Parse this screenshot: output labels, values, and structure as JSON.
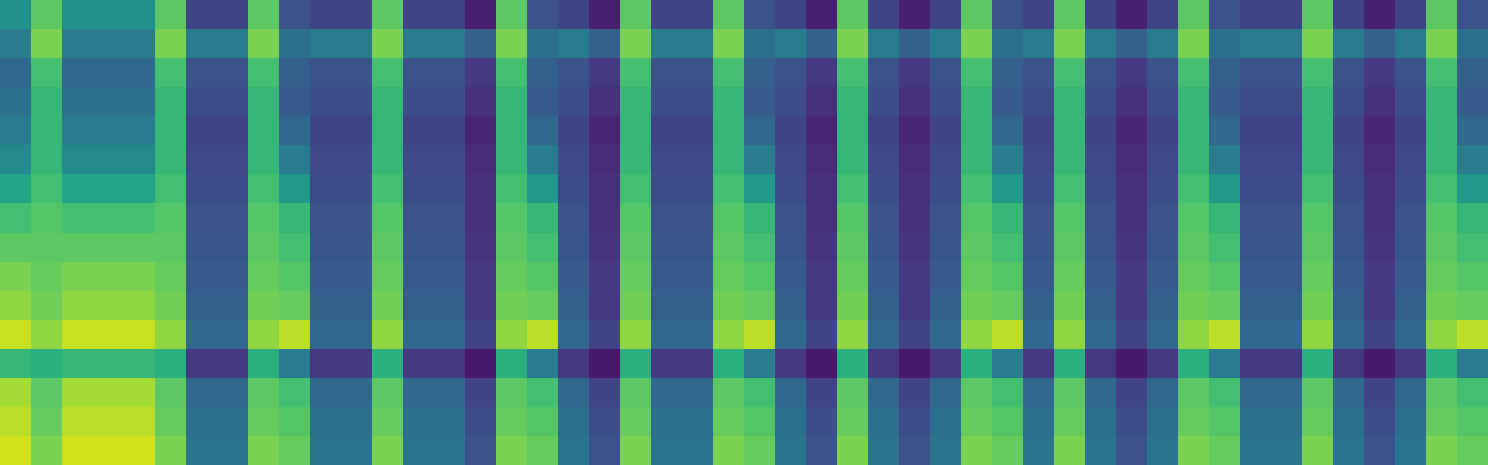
{
  "chart_data": {
    "type": "heatmap",
    "color": "Viridis",
    "tick_labels": false,
    "zlim": [
      30,
      90
    ],
    "z": [
      [
        60,
        75,
        60,
        60,
        60,
        75,
        42,
        42,
        75,
        45,
        42,
        42,
        75,
        42,
        42,
        35,
        75,
        45,
        42,
        35,
        75,
        42,
        42,
        75,
        45,
        42,
        35,
        75,
        42,
        35,
        42,
        75,
        45,
        42,
        75,
        42,
        35,
        42,
        75,
        45,
        42,
        42,
        75,
        42,
        35,
        42,
        75,
        45
      ],
      [
        55,
        78,
        55,
        55,
        55,
        78,
        55,
        55,
        78,
        52,
        55,
        55,
        78,
        55,
        55,
        48,
        78,
        52,
        55,
        48,
        78,
        55,
        55,
        78,
        52,
        55,
        48,
        78,
        55,
        48,
        55,
        78,
        52,
        55,
        78,
        55,
        48,
        55,
        78,
        52,
        55,
        55,
        78,
        55,
        48,
        55,
        78,
        52
      ],
      [
        50,
        72,
        50,
        50,
        50,
        72,
        45,
        45,
        72,
        48,
        45,
        45,
        72,
        45,
        45,
        40,
        72,
        48,
        45,
        40,
        72,
        45,
        45,
        72,
        48,
        45,
        40,
        72,
        45,
        40,
        45,
        72,
        48,
        45,
        72,
        45,
        40,
        45,
        72,
        48,
        45,
        45,
        72,
        45,
        40,
        45,
        72,
        48
      ],
      [
        52,
        70,
        52,
        52,
        52,
        70,
        44,
        44,
        70,
        47,
        44,
        44,
        70,
        44,
        44,
        38,
        70,
        47,
        44,
        38,
        70,
        44,
        44,
        70,
        47,
        44,
        38,
        70,
        44,
        38,
        44,
        70,
        47,
        44,
        70,
        44,
        38,
        44,
        70,
        47,
        44,
        44,
        70,
        44,
        38,
        44,
        70,
        47
      ],
      [
        55,
        70,
        55,
        55,
        55,
        70,
        42,
        42,
        70,
        50,
        42,
        42,
        70,
        42,
        42,
        36,
        70,
        50,
        42,
        36,
        70,
        42,
        42,
        70,
        50,
        42,
        36,
        70,
        42,
        36,
        42,
        70,
        50,
        42,
        70,
        42,
        36,
        42,
        70,
        50,
        42,
        42,
        70,
        42,
        36,
        42,
        70,
        50
      ],
      [
        58,
        70,
        58,
        58,
        58,
        70,
        43,
        43,
        70,
        55,
        43,
        43,
        70,
        43,
        43,
        37,
        70,
        55,
        43,
        37,
        70,
        43,
        43,
        70,
        55,
        43,
        37,
        70,
        43,
        37,
        43,
        70,
        55,
        43,
        70,
        43,
        37,
        43,
        70,
        55,
        43,
        43,
        70,
        43,
        37,
        43,
        70,
        55
      ],
      [
        65,
        72,
        65,
        65,
        65,
        72,
        44,
        44,
        72,
        62,
        44,
        44,
        72,
        44,
        44,
        38,
        72,
        62,
        44,
        38,
        72,
        44,
        44,
        72,
        62,
        44,
        38,
        72,
        44,
        38,
        44,
        72,
        62,
        44,
        72,
        44,
        38,
        44,
        72,
        62,
        44,
        44,
        72,
        44,
        38,
        44,
        72,
        62
      ],
      [
        72,
        74,
        72,
        72,
        72,
        74,
        45,
        45,
        74,
        70,
        45,
        45,
        74,
        45,
        45,
        38,
        74,
        70,
        45,
        38,
        74,
        45,
        45,
        74,
        70,
        45,
        38,
        74,
        45,
        38,
        45,
        74,
        70,
        45,
        74,
        45,
        38,
        45,
        74,
        70,
        45,
        45,
        74,
        45,
        38,
        45,
        74,
        70
      ],
      [
        75,
        75,
        75,
        75,
        75,
        75,
        46,
        46,
        75,
        72,
        46,
        46,
        75,
        46,
        46,
        39,
        75,
        72,
        46,
        39,
        75,
        46,
        46,
        75,
        72,
        46,
        39,
        75,
        46,
        39,
        46,
        75,
        72,
        46,
        75,
        46,
        39,
        46,
        75,
        72,
        46,
        46,
        75,
        46,
        39,
        46,
        75,
        72
      ],
      [
        78,
        76,
        78,
        78,
        78,
        76,
        47,
        47,
        76,
        74,
        47,
        47,
        76,
        47,
        47,
        40,
        76,
        74,
        47,
        40,
        76,
        47,
        47,
        76,
        74,
        47,
        40,
        76,
        47,
        40,
        47,
        76,
        74,
        47,
        76,
        47,
        40,
        47,
        76,
        74,
        47,
        47,
        76,
        47,
        40,
        47,
        76,
        74
      ],
      [
        80,
        77,
        80,
        80,
        80,
        77,
        48,
        48,
        77,
        76,
        48,
        48,
        77,
        48,
        48,
        40,
        77,
        76,
        48,
        40,
        77,
        48,
        48,
        77,
        76,
        48,
        40,
        77,
        48,
        40,
        48,
        77,
        76,
        48,
        77,
        48,
        40,
        48,
        77,
        76,
        48,
        48,
        77,
        48,
        40,
        48,
        77,
        76
      ],
      [
        85,
        80,
        85,
        85,
        85,
        80,
        50,
        50,
        80,
        84,
        50,
        50,
        80,
        50,
        50,
        42,
        80,
        84,
        50,
        42,
        80,
        50,
        50,
        80,
        84,
        50,
        42,
        80,
        50,
        42,
        50,
        80,
        84,
        50,
        80,
        50,
        42,
        50,
        80,
        84,
        50,
        50,
        80,
        50,
        42,
        50,
        80,
        84
      ],
      [
        70,
        68,
        70,
        70,
        70,
        68,
        40,
        40,
        68,
        55,
        40,
        40,
        68,
        40,
        40,
        34,
        68,
        55,
        40,
        34,
        68,
        40,
        40,
        68,
        55,
        40,
        34,
        68,
        40,
        34,
        40,
        68,
        55,
        40,
        68,
        40,
        34,
        40,
        68,
        55,
        40,
        40,
        68,
        40,
        34,
        40,
        68,
        55
      ],
      [
        82,
        75,
        82,
        82,
        82,
        75,
        50,
        50,
        75,
        72,
        50,
        50,
        75,
        50,
        50,
        42,
        75,
        72,
        50,
        42,
        75,
        50,
        50,
        75,
        72,
        50,
        42,
        75,
        50,
        42,
        50,
        75,
        72,
        50,
        75,
        50,
        42,
        50,
        75,
        72,
        50,
        50,
        75,
        50,
        42,
        50,
        75,
        72
      ],
      [
        84,
        76,
        84,
        84,
        84,
        76,
        52,
        52,
        76,
        74,
        52,
        52,
        76,
        52,
        52,
        44,
        76,
        74,
        52,
        44,
        76,
        52,
        52,
        76,
        74,
        52,
        44,
        76,
        52,
        44,
        52,
        76,
        74,
        52,
        76,
        52,
        44,
        52,
        76,
        74,
        52,
        52,
        76,
        52,
        44,
        52,
        76,
        74
      ],
      [
        86,
        78,
        86,
        86,
        86,
        78,
        53,
        53,
        78,
        76,
        53,
        53,
        78,
        53,
        53,
        45,
        78,
        76,
        53,
        45,
        78,
        53,
        53,
        78,
        76,
        53,
        45,
        78,
        53,
        45,
        53,
        78,
        76,
        53,
        78,
        53,
        45,
        53,
        78,
        76,
        53,
        53,
        78,
        53,
        45,
        53,
        78,
        76
      ]
    ]
  }
}
